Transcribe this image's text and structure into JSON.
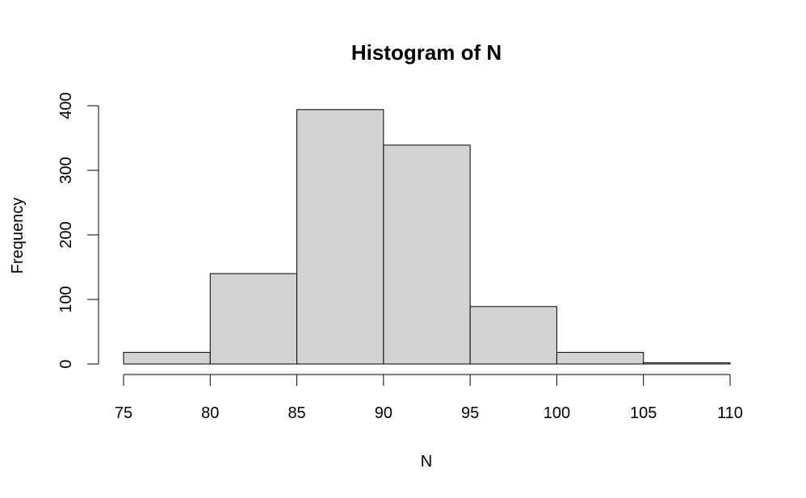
{
  "chart_data": {
    "type": "bar",
    "title": "Histogram of N",
    "xlabel": "N",
    "ylabel": "Frequency",
    "bins": [
      {
        "from": 75,
        "to": 80,
        "value": 18
      },
      {
        "from": 80,
        "to": 85,
        "value": 140
      },
      {
        "from": 85,
        "to": 90,
        "value": 394
      },
      {
        "from": 90,
        "to": 95,
        "value": 339
      },
      {
        "from": 95,
        "to": 100,
        "value": 89
      },
      {
        "from": 100,
        "to": 105,
        "value": 18
      },
      {
        "from": 105,
        "to": 110,
        "value": 2
      }
    ],
    "xlim": [
      75,
      110
    ],
    "ylim": [
      0,
      400
    ],
    "x_ticks": [
      "75",
      "80",
      "85",
      "90",
      "95",
      "100",
      "105",
      "110"
    ],
    "y_ticks": [
      "0",
      "100",
      "200",
      "300",
      "400"
    ],
    "bar_color": "#d3d3d3",
    "grid": false
  }
}
